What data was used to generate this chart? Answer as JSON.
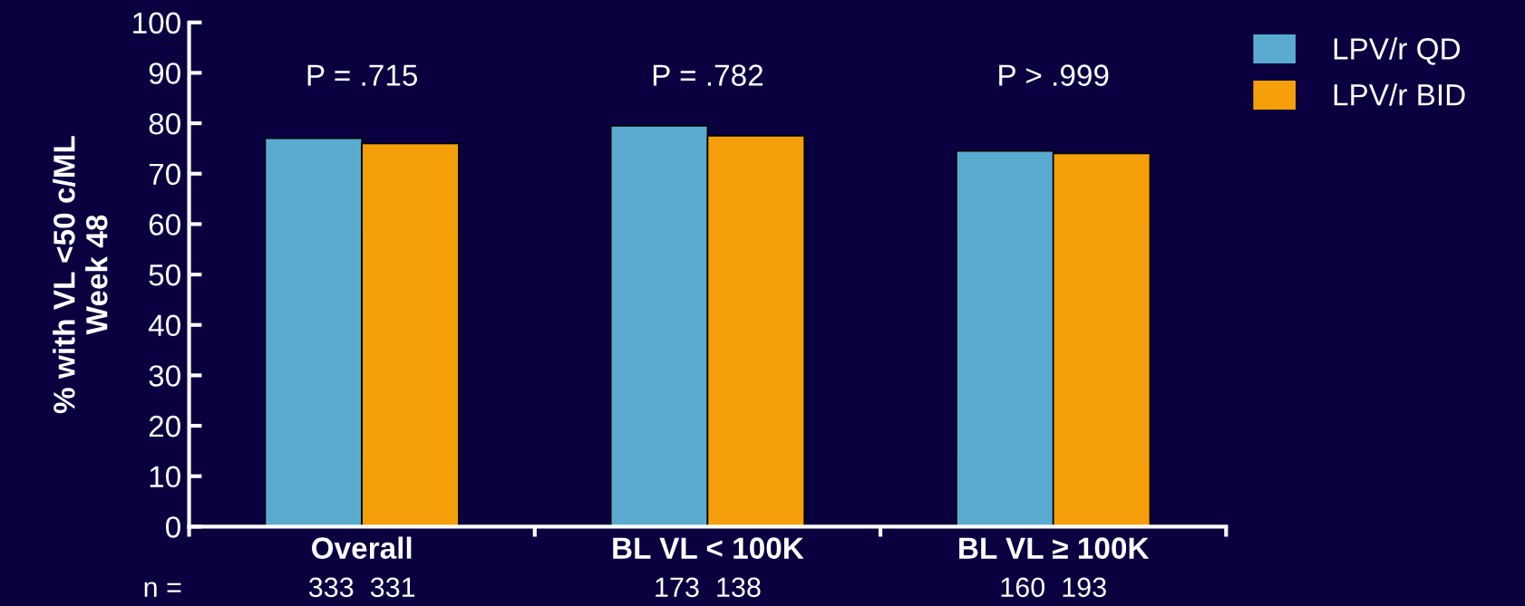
{
  "chart_data": {
    "type": "bar",
    "ylabel": "% with VL <50 c/ML\nWeek 48",
    "categories": [
      "Overall",
      "BL VL < 100K",
      "BL VL ≥ 100K"
    ],
    "series": [
      {
        "name": "LPV/r QD",
        "color": "#5aabcf",
        "values": [
          77,
          79.5,
          74.5
        ]
      },
      {
        "name": "LPV/r BID",
        "color": "#f5a00a",
        "values": [
          76,
          77.5,
          74
        ]
      }
    ],
    "ylim": [
      0,
      100
    ],
    "yticks": [
      0,
      10,
      20,
      30,
      40,
      50,
      60,
      70,
      80,
      90,
      100
    ],
    "grid": false,
    "legend": "top right",
    "annotations": [
      "P = .715",
      "P = .782",
      "P > .999",
      "n =",
      "333  331",
      "173  138",
      "160  193"
    ]
  }
}
